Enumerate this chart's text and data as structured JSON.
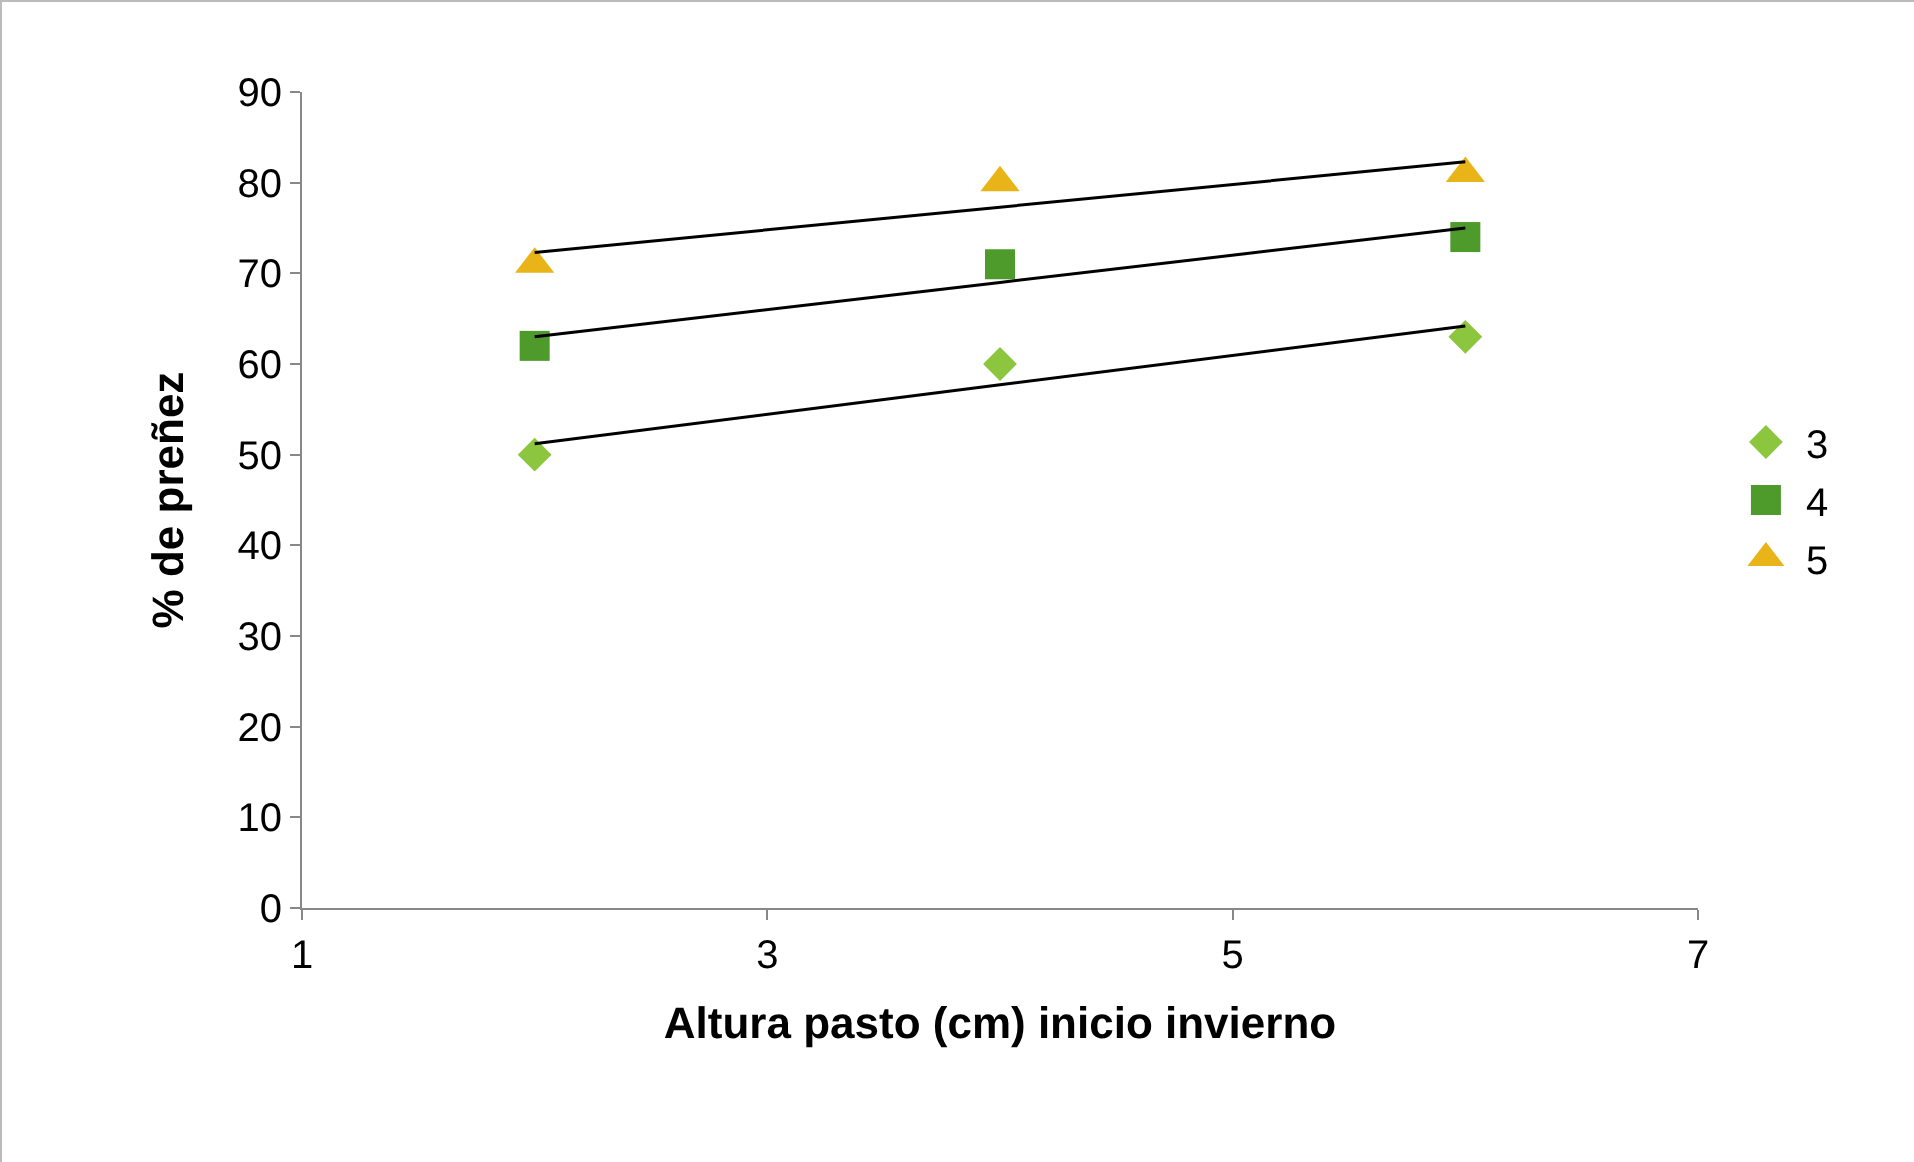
{
  "chart_data": {
    "type": "scatter",
    "xlabel": "Altura pasto (cm) inicio invierno",
    "ylabel": "% de preñez",
    "x": [
      2,
      4,
      6
    ],
    "series": [
      {
        "name": "3",
        "color": "#8cc63e",
        "marker": "diamond",
        "values": [
          50,
          60,
          63
        ]
      },
      {
        "name": "4",
        "color": "#4e9a2a",
        "marker": "square",
        "values": [
          62,
          71,
          74
        ]
      },
      {
        "name": "5",
        "color": "#e8b418",
        "marker": "triangle",
        "values": [
          71,
          80,
          81
        ]
      },
      {
        "type": "line",
        "color": "#000000",
        "marker": "none",
        "values": [
          51.2,
          57.7,
          64.2
        ]
      },
      {
        "type": "line",
        "color": "#000000",
        "marker": "none",
        "values": [
          63,
          69,
          75
        ]
      },
      {
        "type": "line",
        "color": "#000000",
        "marker": "none",
        "values": [
          72.3,
          77.3,
          82.3
        ]
      }
    ],
    "xlim": [
      1,
      7
    ],
    "xticks": [
      1,
      3,
      5,
      7
    ],
    "ylim": [
      0,
      90
    ],
    "yticks": [
      0,
      10,
      20,
      30,
      40,
      50,
      60,
      70,
      80,
      90
    ],
    "grid": false,
    "legend": "right",
    "line_style": "solid"
  }
}
